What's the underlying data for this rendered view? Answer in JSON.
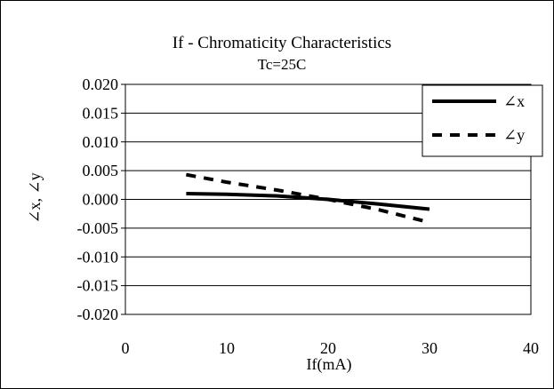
{
  "chart_data": {
    "type": "line",
    "title": "If - Chromaticity Characteristics",
    "subtitle": "Tc=25C",
    "xlabel": "If(mA)",
    "ylabel": "∠x, ∠y",
    "xlim": [
      0,
      40
    ],
    "ylim": [
      -0.02,
      0.02
    ],
    "x_ticks": [
      "0",
      "10",
      "20",
      "30",
      "40"
    ],
    "y_ticks": [
      "0.020",
      "0.015",
      "0.010",
      "0.005",
      "0.000",
      "-0.005",
      "-0.010",
      "-0.015",
      "-0.020"
    ],
    "grid": "horizontal",
    "legend_position": "top-right",
    "series": [
      {
        "name": "∠x",
        "style": "solid",
        "color": "#000000",
        "x": [
          6,
          10,
          15,
          20,
          25,
          30
        ],
        "y": [
          0.001,
          0.0009,
          0.0006,
          0.0,
          -0.0008,
          -0.0017
        ]
      },
      {
        "name": "∠y",
        "style": "dashed",
        "color": "#000000",
        "x": [
          6,
          10,
          15,
          20,
          25,
          30
        ],
        "y": [
          0.0043,
          0.003,
          0.0016,
          0.0,
          -0.0018,
          -0.004
        ]
      }
    ]
  }
}
